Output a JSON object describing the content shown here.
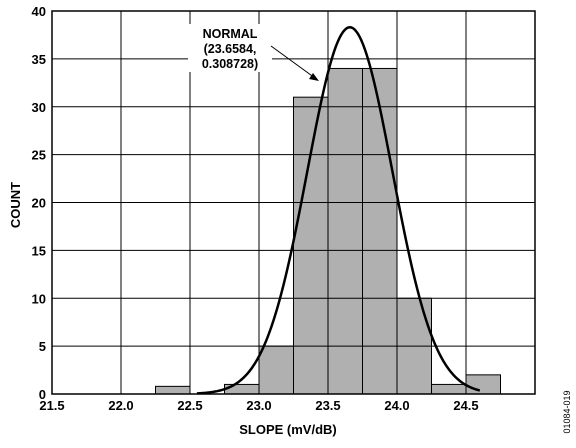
{
  "chart_data": {
    "type": "bar",
    "subtype": "histogram",
    "xlabel": "SLOPE (mV/dB)",
    "ylabel": "COUNT",
    "xlim": [
      21.5,
      25.0
    ],
    "ylim": [
      0,
      40
    ],
    "x_ticks": [
      "21.5",
      "22.0",
      "22.5",
      "23.0",
      "23.5",
      "24.0",
      "24.5"
    ],
    "y_ticks": [
      "0",
      "5",
      "10",
      "15",
      "20",
      "25",
      "30",
      "35",
      "40"
    ],
    "grid": true,
    "bin_width": 0.25,
    "bins": [
      {
        "x": 22.25,
        "count": 0.8
      },
      {
        "x": 22.5,
        "count": 0
      },
      {
        "x": 22.75,
        "count": 1
      },
      {
        "x": 23.0,
        "count": 5
      },
      {
        "x": 23.25,
        "count": 31
      },
      {
        "x": 23.5,
        "count": 34
      },
      {
        "x": 23.75,
        "count": 34
      },
      {
        "x": 24.0,
        "count": 10
      },
      {
        "x": 24.25,
        "count": 1
      },
      {
        "x": 24.5,
        "count": 2
      }
    ],
    "fit": {
      "type": "normal",
      "mean": 23.6584,
      "std": 0.308728,
      "peak": 38.3
    },
    "annotation": [
      "NORMAL",
      "(23.6584,",
      "0.308728)"
    ],
    "figure_code": "01084-019",
    "colors": {
      "bar_fill": "#b0b0b0",
      "line": "#000000",
      "grid": "#000000"
    }
  }
}
